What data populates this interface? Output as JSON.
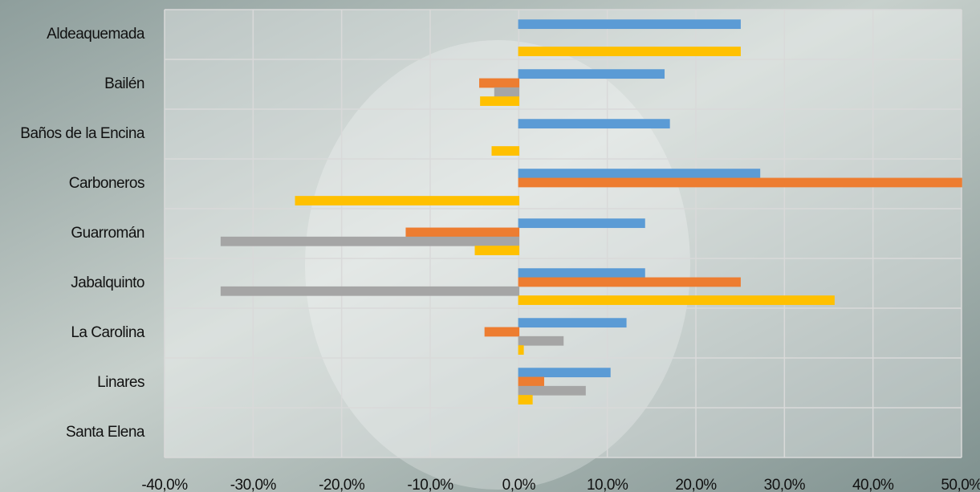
{
  "chart_data": {
    "type": "hbar",
    "categories": [
      "Aldeaquemada",
      "Bailén",
      "Baños de la Encina",
      "Carboneros",
      "Guarromán",
      "Jabalquinto",
      "La Carolina",
      "Linares",
      "Santa Elena"
    ],
    "series": [
      {
        "color": "#5b9bd5",
        "values": [
          25,
          16.4,
          17,
          27.2,
          14.2,
          14.2,
          12.1,
          10.3,
          0
        ]
      },
      {
        "color": "#ed7d31",
        "values": [
          0,
          -4.4,
          0,
          50,
          -12.7,
          25,
          -3.8,
          2.8,
          0
        ]
      },
      {
        "color": "#a5a5a5",
        "values": [
          0,
          -2.7,
          0,
          0,
          -33.6,
          -33.6,
          5,
          7.5,
          0
        ]
      },
      {
        "color": "#ffc000",
        "values": [
          25,
          -4.3,
          -3,
          -25.2,
          -4.9,
          35.6,
          0.5,
          1.5,
          0
        ]
      }
    ],
    "xlim": [
      -40,
      50
    ],
    "xticks": [
      {
        "value": -40,
        "label": "-40,0%"
      },
      {
        "value": -30,
        "label": "-30,0%"
      },
      {
        "value": -20,
        "label": "-20,0%"
      },
      {
        "value": -10,
        "label": "-10,0%"
      },
      {
        "value": 0,
        "label": "0,0%"
      },
      {
        "value": 10,
        "label": "10,0%"
      },
      {
        "value": 20,
        "label": "20,0%"
      },
      {
        "value": 30,
        "label": "30,0%"
      },
      {
        "value": 40,
        "label": "40,0%"
      },
      {
        "value": 50,
        "label": "50,0%"
      }
    ],
    "grid": true
  }
}
